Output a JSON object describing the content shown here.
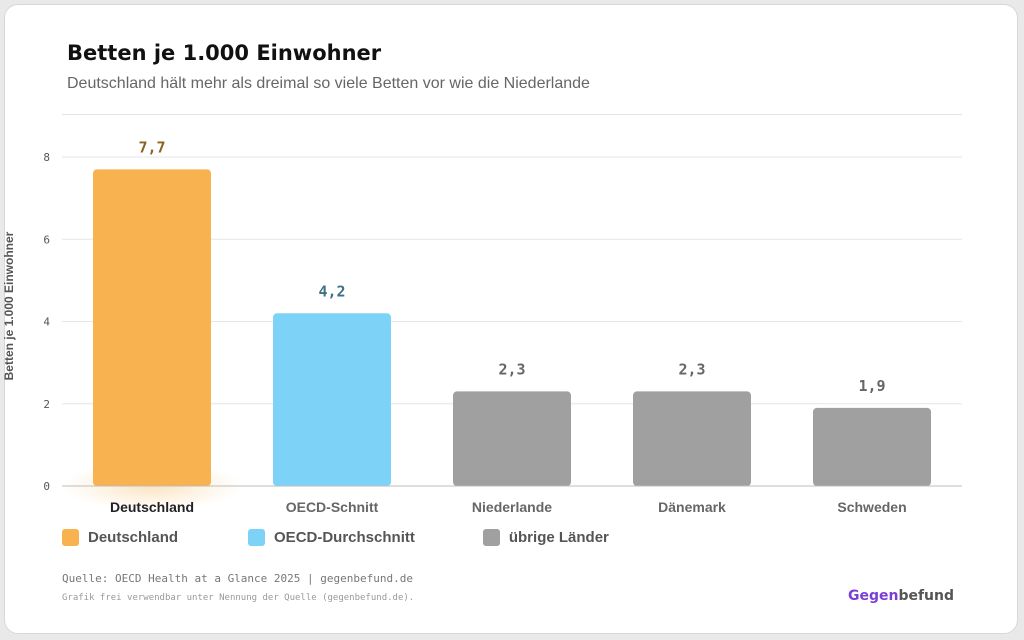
{
  "header": {
    "title": "Betten je 1.000 Einwohner",
    "subtitle": "Deutschland hält mehr als dreimal so viele Betten vor wie die Niederlande"
  },
  "chart_data": {
    "type": "bar",
    "categories": [
      "Deutschland",
      "OECD-Schnitt",
      "Niederlande",
      "Dänemark",
      "Schweden"
    ],
    "values": [
      7.7,
      4.2,
      2.3,
      2.3,
      1.9
    ],
    "value_labels": [
      "7,7",
      "4,2",
      "2,3",
      "2,3",
      "1,9"
    ],
    "bar_groups": [
      "deutschland",
      "oecd",
      "uebrige",
      "uebrige",
      "uebrige"
    ],
    "ylabel": "Betten je 1.000 Einwohner",
    "ylim": [
      0,
      8
    ],
    "yticks": [
      0,
      2,
      4,
      6,
      8
    ],
    "grid": true,
    "legend_position": "bottom-left"
  },
  "colors": {
    "deutschland": "#F8B24F",
    "oecd": "#7DD3F7",
    "uebrige": "#A0A0A0",
    "label_deutschland": "#8A6420",
    "label_oecd": "#3E7385",
    "label_uebrige": "#666666",
    "brand_accent": "#7B3FD6",
    "brand_text": "#555555"
  },
  "legend": {
    "items": [
      {
        "label": "Deutschland",
        "group": "deutschland"
      },
      {
        "label": "OECD-Durchschnitt",
        "group": "oecd"
      },
      {
        "label": "übrige Länder",
        "group": "uebrige"
      }
    ]
  },
  "footer": {
    "source": "Quelle: OECD Health at a Glance 2025 | gegenbefund.de",
    "note": "Grafik frei verwendbar unter Nennung der Quelle (gegenbefund.de).",
    "brand_part1": "Gegen",
    "brand_part2": "befund"
  }
}
